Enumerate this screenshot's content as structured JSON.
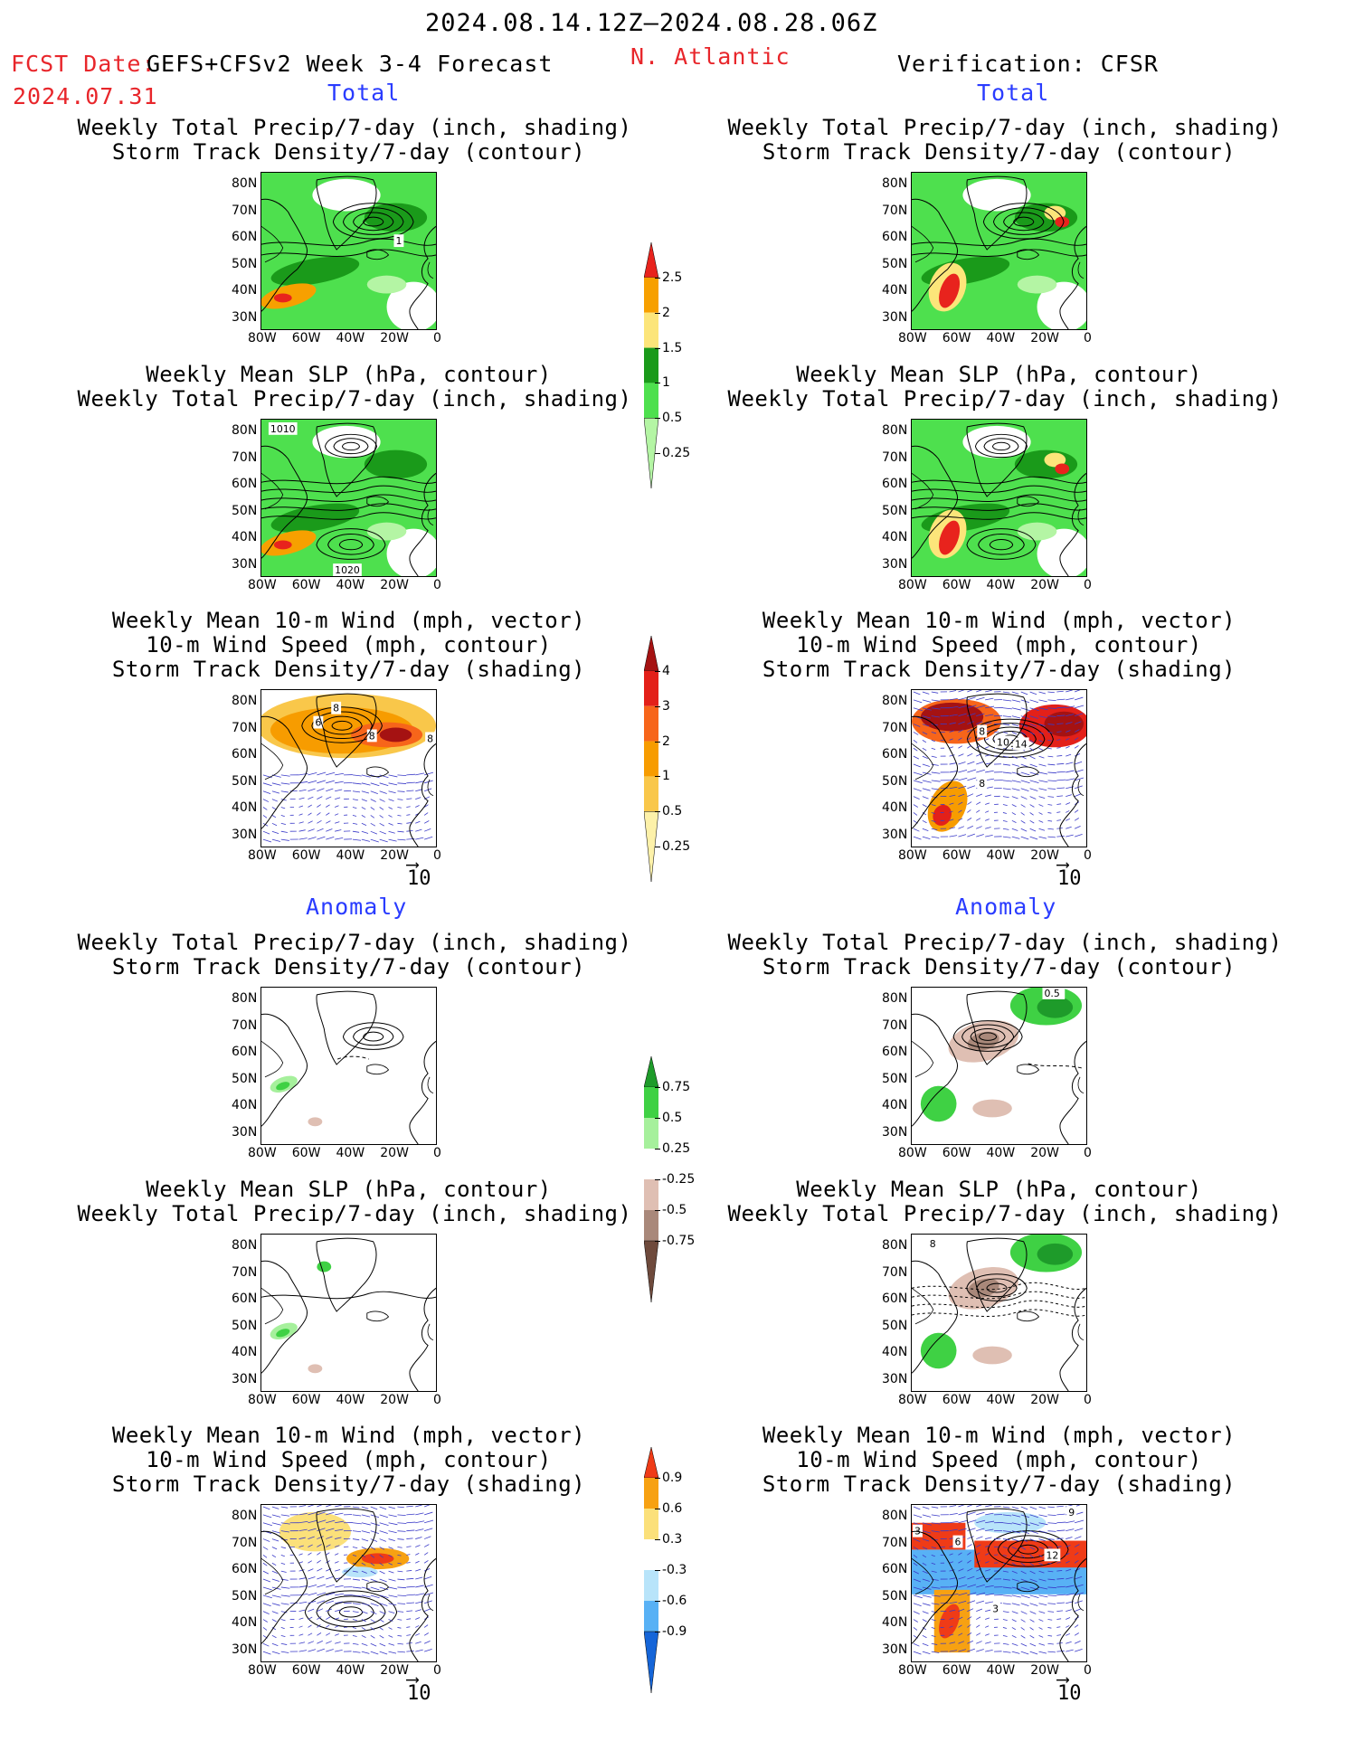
{
  "header": {
    "period": "2024.08.14.12Z–2024.08.28.06Z",
    "fcst_label": "FCST Date:",
    "model": "GEFS+CFSv2 Week 3-4 Forecast",
    "fcst_date": "2024.07.31",
    "region": "N. Atlantic",
    "verification": "Verification: CFSR"
  },
  "sections": {
    "total": "Total",
    "anomaly": "Anomaly"
  },
  "titles": {
    "precip_storm": [
      "Weekly Total Precip/7-day (inch, shading)",
      "Storm Track Density/7-day (contour)"
    ],
    "slp_precip": [
      "Weekly Mean SLP (hPa, contour)",
      "Weekly Total Precip/7-day (inch, shading)"
    ],
    "wind_storm": [
      "Weekly Mean 10-m Wind (mph, vector)",
      "10-m Wind Speed (mph, contour)",
      "Storm Track Density/7-day (shading)"
    ]
  },
  "axes": {
    "lat_ticks": [
      "80N",
      "70N",
      "60N",
      "50N",
      "40N",
      "30N"
    ],
    "lon_ticks": [
      "80W",
      "60W",
      "40W",
      "20W",
      "0"
    ]
  },
  "vector_ref": "10",
  "colorbars": {
    "precip_total": {
      "labels": [
        "2.5",
        "2",
        "1.5",
        "1",
        "0.5",
        "0.25"
      ],
      "colors": [
        "#e8231d",
        "#f7a000",
        "#fce57a",
        "#1a9a1a",
        "#4ee04e",
        "#b4f5a4"
      ]
    },
    "storm_total": {
      "labels": [
        "4",
        "3",
        "2",
        "1",
        "0.5",
        "0.25"
      ],
      "colors": [
        "#a51212",
        "#e32019",
        "#f7651a",
        "#f79c00",
        "#f9c74a",
        "#fdf1a9"
      ]
    },
    "precip_anom": {
      "labels": [
        "0.75",
        "0.5",
        "0.25",
        "-0.25",
        "-0.5",
        "-0.75"
      ],
      "colors": [
        "#1e9b2a",
        "#3fd144",
        "#a6f09c",
        "#ffffff",
        "#dfbfb3",
        "#a9887a",
        "#6e4a3c"
      ]
    },
    "storm_anom": {
      "labels": [
        "0.9",
        "0.6",
        "0.3",
        "-0.3",
        "-0.6",
        "-0.9"
      ],
      "colors": [
        "#ef3b17",
        "#f7a112",
        "#fbe07a",
        "#ffffff",
        "#b8e4fa",
        "#58b1f5",
        "#1565d8"
      ]
    }
  },
  "map_labels": {
    "fc_precip_storm": [
      "1"
    ],
    "fc_slp": [
      "1010",
      "1020"
    ],
    "fc_wind": [
      "8",
      "6",
      "8",
      "8",
      "6"
    ],
    "ob_wind": [
      "10",
      "14",
      "8",
      "8"
    ],
    "ob_precip_anom": [
      "0.5"
    ],
    "ob_slp_anom": [
      "8"
    ],
    "ob_wind_anom": [
      "3",
      "6",
      "12",
      "3",
      "9"
    ]
  }
}
